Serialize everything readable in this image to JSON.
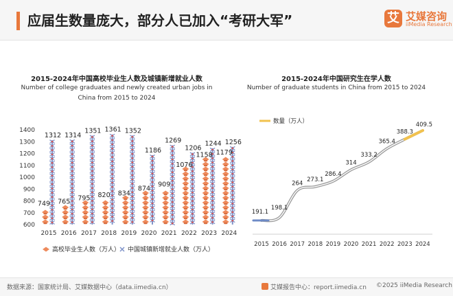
{
  "header": {
    "title": "应届生数量庞大，部分人已加入“考研大军”",
    "brand_logo_char": "艾",
    "brand_name": "艾媒咨询",
    "brand_en": "iiMedia Research"
  },
  "colors": {
    "accent": "#e8783c",
    "graduates": "#ee8a5c",
    "jobs": "#7f93c9",
    "line": "#9a9a9a",
    "line_highlight": "#f2c24e"
  },
  "chart_data": [
    {
      "type": "bar",
      "title": "2015-2024年中国高校毕业生人数及城镇新增就业人数",
      "subtitle": "Number of college graduates and newly created urban jobs in China from 2015 to 2024",
      "categories": [
        "2015",
        "2016",
        "2017",
        "2018",
        "2019",
        "2020",
        "2021",
        "2022",
        "2023",
        "2024"
      ],
      "series": [
        {
          "name": "高校毕业生人数（万人）",
          "values": [
            749,
            765,
            795,
            820,
            834,
            874,
            909,
            1076,
            1158,
            1179
          ]
        },
        {
          "name": "中国城镇新增就业人数（万人）",
          "values": [
            1312,
            1314,
            1351,
            1361,
            1352,
            1186,
            1269,
            1206,
            1244,
            1256
          ]
        }
      ],
      "ylim": [
        600,
        1400
      ],
      "yticks": [
        "600",
        "700",
        "800",
        "900",
        "1000",
        "1100",
        "1200",
        "1300",
        "1400"
      ],
      "grid": false,
      "legend": "bottom"
    },
    {
      "type": "line",
      "title": "2015-2024年中国研究生在学人数",
      "subtitle": "Number of graduate students in China from 2015 to 2024",
      "x": [
        "2015",
        "2016",
        "2017",
        "2018",
        "2019",
        "2020",
        "2021",
        "2022",
        "2023",
        "2024"
      ],
      "series": [
        {
          "name": "数量（万人）",
          "values": [
            191.1,
            198.1,
            264,
            273.1,
            286.4,
            314,
            333.2,
            365.4,
            388.3,
            409.5
          ]
        }
      ],
      "grid": false,
      "legend": "top-left"
    }
  ],
  "footer": {
    "source": "数据来源：国家统计局、艾媒数据中心（data.iimedia.cn）",
    "brand": "艾媒报告中心：report.iimedia.cn",
    "copyright": "©2025  iiMedia Research  Inc"
  }
}
